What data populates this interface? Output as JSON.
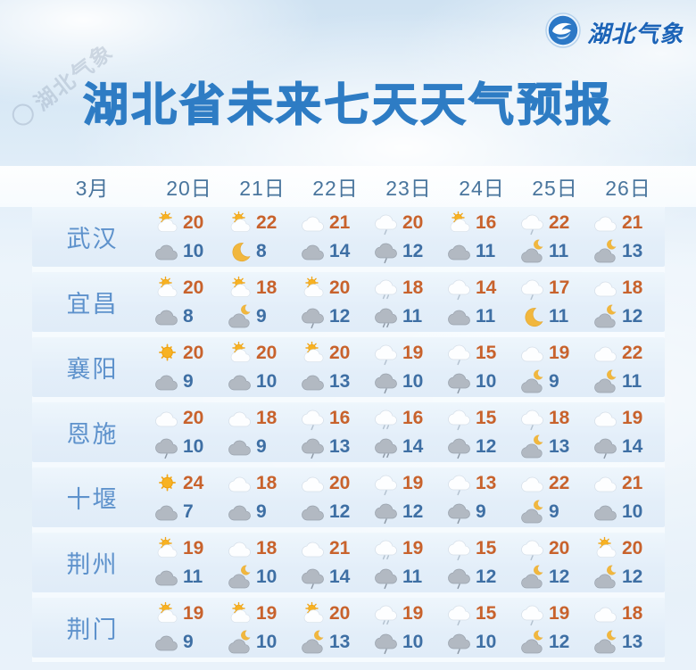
{
  "logo": {
    "text": "湖北气象"
  },
  "watermark": {
    "text": "湖北气象"
  },
  "title": "湖北省未来七天天气预报",
  "colors": {
    "title": "#2e7cc4",
    "date_header": "#49759d",
    "city_name": "#5e92cc",
    "high_temp": "#c8622c",
    "low_temp": "#3e6fa4",
    "logo_text": "#1b63b7"
  },
  "icon_legend": {
    "sun": "sunny",
    "sun-cloud": "partly-cloudy-day",
    "cloud-white": "cloudy-day",
    "cloud-gray": "cloudy-night",
    "rain-white": "light-rain-day",
    "rain-gray": "light-rain-night",
    "drizzle-white": "drizzle-day",
    "drizzle-gray": "drizzle-night",
    "moon": "clear-night",
    "moon-cloud-gray": "partly-cloudy-night"
  },
  "chart_data": {
    "type": "table",
    "title": "湖北省未来七天天气预报",
    "month_label": "3月",
    "columns": [
      "20日",
      "21日",
      "22日",
      "23日",
      "24日",
      "25日",
      "26日"
    ],
    "rows": [
      {
        "city": "武汉",
        "days": [
          {
            "day_icon": "sun-cloud",
            "high": 20,
            "night_icon": "cloud-gray",
            "low": 10
          },
          {
            "day_icon": "sun-cloud",
            "high": 22,
            "night_icon": "moon",
            "low": 8
          },
          {
            "day_icon": "cloud-white",
            "high": 21,
            "night_icon": "cloud-gray",
            "low": 14
          },
          {
            "day_icon": "rain-white",
            "high": 20,
            "night_icon": "rain-gray",
            "low": 12
          },
          {
            "day_icon": "sun-cloud",
            "high": 16,
            "night_icon": "cloud-gray",
            "low": 11
          },
          {
            "day_icon": "rain-white",
            "high": 22,
            "night_icon": "moon-cloud-gray",
            "low": 11
          },
          {
            "day_icon": "cloud-white",
            "high": 21,
            "night_icon": "moon-cloud-gray",
            "low": 13
          }
        ]
      },
      {
        "city": "宜昌",
        "days": [
          {
            "day_icon": "sun-cloud",
            "high": 20,
            "night_icon": "cloud-gray",
            "low": 8
          },
          {
            "day_icon": "sun-cloud",
            "high": 18,
            "night_icon": "moon-cloud-gray",
            "low": 9
          },
          {
            "day_icon": "sun-cloud",
            "high": 20,
            "night_icon": "rain-gray",
            "low": 12
          },
          {
            "day_icon": "drizzle-white",
            "high": 18,
            "night_icon": "drizzle-gray",
            "low": 11
          },
          {
            "day_icon": "rain-white",
            "high": 14,
            "night_icon": "cloud-gray",
            "low": 11
          },
          {
            "day_icon": "rain-white",
            "high": 17,
            "night_icon": "moon",
            "low": 11
          },
          {
            "day_icon": "cloud-white",
            "high": 18,
            "night_icon": "moon-cloud-gray",
            "low": 12
          }
        ]
      },
      {
        "city": "襄阳",
        "days": [
          {
            "day_icon": "sun",
            "high": 20,
            "night_icon": "cloud-gray",
            "low": 9
          },
          {
            "day_icon": "sun-cloud",
            "high": 20,
            "night_icon": "cloud-gray",
            "low": 10
          },
          {
            "day_icon": "sun-cloud",
            "high": 20,
            "night_icon": "cloud-gray",
            "low": 13
          },
          {
            "day_icon": "rain-white",
            "high": 19,
            "night_icon": "rain-gray",
            "low": 10
          },
          {
            "day_icon": "rain-white",
            "high": 15,
            "night_icon": "rain-gray",
            "low": 10
          },
          {
            "day_icon": "cloud-white",
            "high": 19,
            "night_icon": "moon-cloud-gray",
            "low": 9
          },
          {
            "day_icon": "cloud-white",
            "high": 22,
            "night_icon": "moon-cloud-gray",
            "low": 11
          }
        ]
      },
      {
        "city": "恩施",
        "days": [
          {
            "day_icon": "cloud-white",
            "high": 20,
            "night_icon": "rain-gray",
            "low": 10
          },
          {
            "day_icon": "cloud-white",
            "high": 18,
            "night_icon": "cloud-gray",
            "low": 9
          },
          {
            "day_icon": "rain-white",
            "high": 16,
            "night_icon": "rain-gray",
            "low": 13
          },
          {
            "day_icon": "drizzle-white",
            "high": 16,
            "night_icon": "drizzle-gray",
            "low": 14
          },
          {
            "day_icon": "rain-white",
            "high": 15,
            "night_icon": "rain-gray",
            "low": 12
          },
          {
            "day_icon": "rain-white",
            "high": 18,
            "night_icon": "moon-cloud-gray",
            "low": 13
          },
          {
            "day_icon": "cloud-white",
            "high": 19,
            "night_icon": "rain-gray",
            "low": 14
          }
        ]
      },
      {
        "city": "十堰",
        "days": [
          {
            "day_icon": "sun",
            "high": 24,
            "night_icon": "cloud-gray",
            "low": 7
          },
          {
            "day_icon": "cloud-white",
            "high": 18,
            "night_icon": "cloud-gray",
            "low": 9
          },
          {
            "day_icon": "cloud-white",
            "high": 20,
            "night_icon": "cloud-gray",
            "low": 12
          },
          {
            "day_icon": "rain-white",
            "high": 19,
            "night_icon": "rain-gray",
            "low": 12
          },
          {
            "day_icon": "rain-white",
            "high": 13,
            "night_icon": "rain-gray",
            "low": 9
          },
          {
            "day_icon": "cloud-white",
            "high": 22,
            "night_icon": "moon-cloud-gray",
            "low": 9
          },
          {
            "day_icon": "cloud-white",
            "high": 21,
            "night_icon": "cloud-gray",
            "low": 10
          }
        ]
      },
      {
        "city": "荆州",
        "days": [
          {
            "day_icon": "sun-cloud",
            "high": 19,
            "night_icon": "cloud-gray",
            "low": 11
          },
          {
            "day_icon": "cloud-white",
            "high": 18,
            "night_icon": "moon-cloud-gray",
            "low": 10
          },
          {
            "day_icon": "cloud-white",
            "high": 21,
            "night_icon": "rain-gray",
            "low": 14
          },
          {
            "day_icon": "drizzle-white",
            "high": 19,
            "night_icon": "rain-gray",
            "low": 11
          },
          {
            "day_icon": "rain-white",
            "high": 15,
            "night_icon": "rain-gray",
            "low": 12
          },
          {
            "day_icon": "rain-white",
            "high": 20,
            "night_icon": "moon-cloud-gray",
            "low": 12
          },
          {
            "day_icon": "sun-cloud",
            "high": 20,
            "night_icon": "moon-cloud-gray",
            "low": 12
          }
        ]
      },
      {
        "city": "荆门",
        "days": [
          {
            "day_icon": "sun-cloud",
            "high": 19,
            "night_icon": "cloud-gray",
            "low": 9
          },
          {
            "day_icon": "sun-cloud",
            "high": 19,
            "night_icon": "moon-cloud-gray",
            "low": 10
          },
          {
            "day_icon": "sun-cloud",
            "high": 20,
            "night_icon": "moon-cloud-gray",
            "low": 13
          },
          {
            "day_icon": "drizzle-white",
            "high": 19,
            "night_icon": "rain-gray",
            "low": 10
          },
          {
            "day_icon": "rain-white",
            "high": 15,
            "night_icon": "rain-gray",
            "low": 10
          },
          {
            "day_icon": "rain-white",
            "high": 19,
            "night_icon": "moon-cloud-gray",
            "low": 12
          },
          {
            "day_icon": "cloud-white",
            "high": 18,
            "night_icon": "moon-cloud-gray",
            "low": 13
          }
        ]
      }
    ]
  }
}
